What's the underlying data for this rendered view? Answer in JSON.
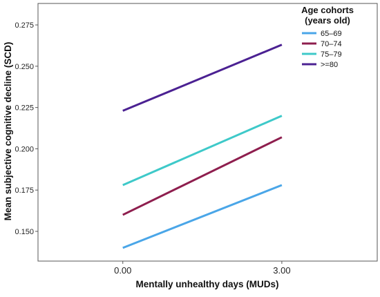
{
  "chart_data": {
    "type": "line",
    "xlabel": "Mentally unhealthy days (MUDs)",
    "ylabel": "Mean subjective cognitive decline (SCD)",
    "x": [
      0,
      3
    ],
    "x_tick_labels": [
      "0.00",
      "3.00"
    ],
    "y_ticks": [
      0.15,
      0.175,
      0.2,
      0.225,
      0.25,
      0.275
    ],
    "y_tick_labels": [
      "0.150",
      "0.175",
      "0.200",
      "0.225",
      "0.250",
      "0.275"
    ],
    "xlim": [
      -1.6,
      4.8
    ],
    "ylim": [
      0.132,
      0.288
    ],
    "legend_title_lines": [
      "Age cohorts",
      "(years old)"
    ],
    "legend_position": "top-right",
    "grid": false,
    "series": [
      {
        "name": "65–69",
        "color": "#4aa6e8",
        "values": [
          0.14,
          0.178
        ]
      },
      {
        "name": "70–74",
        "color": "#8e1e4e",
        "values": [
          0.16,
          0.207
        ]
      },
      {
        "name": "75–79",
        "color": "#3ec9c9",
        "values": [
          0.178,
          0.22
        ]
      },
      {
        "name": ">=80",
        "color": "#4b2192",
        "values": [
          0.223,
          0.263
        ]
      }
    ]
  }
}
